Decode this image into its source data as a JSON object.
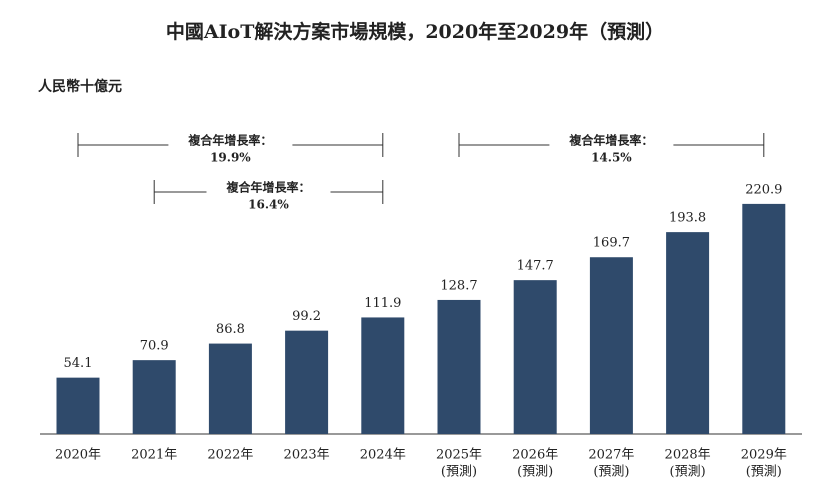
{
  "chart_data": {
    "type": "bar",
    "title": "中國AIoT解決方案市場規模，2020年至2029年（預測）",
    "unit": "人民幣十億元",
    "categories": [
      "2020年",
      "2021年",
      "2022年",
      "2023年",
      "2024年",
      "2025年",
      "2026年",
      "2027年",
      "2028年",
      "2029年"
    ],
    "category_notes": [
      null,
      null,
      null,
      null,
      null,
      "(預測)",
      "(預測)",
      "(預測)",
      "(預測)",
      "(預測)"
    ],
    "values": [
      54.1,
      70.9,
      86.8,
      99.2,
      111.9,
      128.7,
      147.7,
      169.7,
      193.8,
      220.9
    ],
    "color": "#2f4a6b",
    "ylim": [
      0,
      240
    ],
    "annotations": [
      {
        "label": "複合年增長率：",
        "rate": "19.9%",
        "from": "2020年",
        "to": "2024年"
      },
      {
        "label": "複合年增長率：",
        "rate": "16.4%",
        "from": "2021年",
        "to": "2024年"
      },
      {
        "label": "複合年增長率：",
        "rate": "14.5%",
        "from": "2025年",
        "to": "2029年"
      }
    ]
  }
}
